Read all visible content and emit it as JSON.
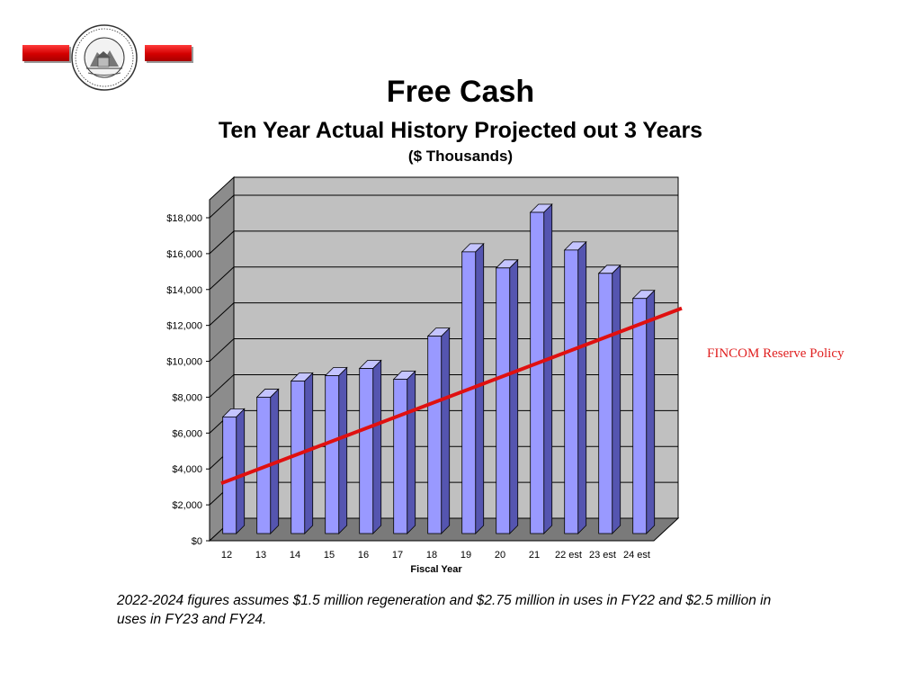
{
  "header": {
    "title": "Free Cash",
    "subtitle": "Ten Year Actual History Projected out 3 Years",
    "units": "($ Thousands)"
  },
  "seal": {
    "text_top": "TOWN OF READING",
    "text_bottom": "SETTLED 1639 INCORPORATED 1644"
  },
  "colors": {
    "accent_red": "#e01010",
    "bar_face": "#9999ff",
    "bar_side": "#5555b0",
    "bar_top": "#c4c4ff",
    "plot_back": "#c0c0c0",
    "plot_left": "#8c8c8c",
    "plot_floor": "#7a7a7a",
    "annotation": "#e02020"
  },
  "chart_data": {
    "type": "bar",
    "categories": [
      "12",
      "13",
      "14",
      "15",
      "16",
      "17",
      "18",
      "19",
      "20",
      "21",
      "22 est",
      "23 est",
      "24 est"
    ],
    "series": [
      {
        "values": [
          6600,
          7700,
          8600,
          8900,
          9300,
          8700,
          11100,
          15800,
          14900,
          18000,
          15900,
          14600,
          13200
        ]
      }
    ],
    "overlay_line": {
      "label": "FINCOM Reserve Policy",
      "start": [
        1,
        2600
      ],
      "end": [
        13,
        11400
      ],
      "extends_to_right_edge": true
    },
    "xlabel": "Fiscal Year",
    "ylabel": "",
    "ylim": [
      0,
      18000
    ],
    "yticks": [
      "$0",
      "$2,000",
      "$4,000",
      "$6,000",
      "$8,000",
      "$10,000",
      "$12,000",
      "$14,000",
      "$16,000",
      "$18,000"
    ],
    "grid": true,
    "three_d": true
  },
  "footnote": "2022-2024 figures assumes $1.5 million regeneration and $2.75 million in uses in FY22 and $2.5 million in uses in FY23 and FY24."
}
